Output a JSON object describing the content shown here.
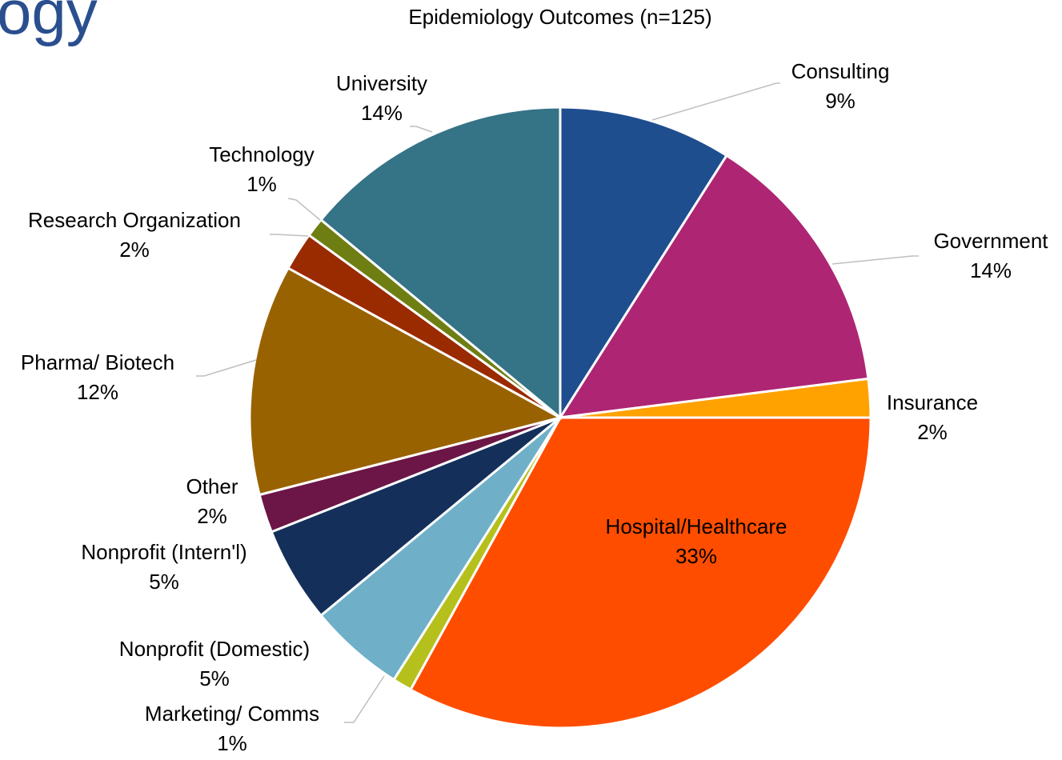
{
  "heading": "ogy",
  "chart_data": {
    "type": "pie",
    "title": "Epidemiology Outcomes (n=125)",
    "categories": [
      "Consulting",
      "Government",
      "Insurance",
      "Hospital/Healthcare",
      "Marketing/ Comms",
      "Nonprofit (Domestic)",
      "Nonprofit (Intern'l)",
      "Other",
      "Pharma/ Biotech",
      "Research Organization",
      "Technology",
      "University"
    ],
    "values": [
      9,
      14,
      2,
      33,
      1,
      5,
      5,
      2,
      12,
      2,
      1,
      14
    ],
    "value_labels": [
      "9%",
      "14%",
      "2%",
      "33%",
      "1%",
      "5%",
      "5%",
      "2%",
      "12%",
      "2%",
      "1%",
      "14%"
    ],
    "colors": [
      "#1f4e8f",
      "#ae2573",
      "#ffa200",
      "#ff4d00",
      "#b5c01c",
      "#6fb0c8",
      "#14305a",
      "#6b1646",
      "#996200",
      "#9a2a00",
      "#6e7e13",
      "#357386"
    ]
  }
}
